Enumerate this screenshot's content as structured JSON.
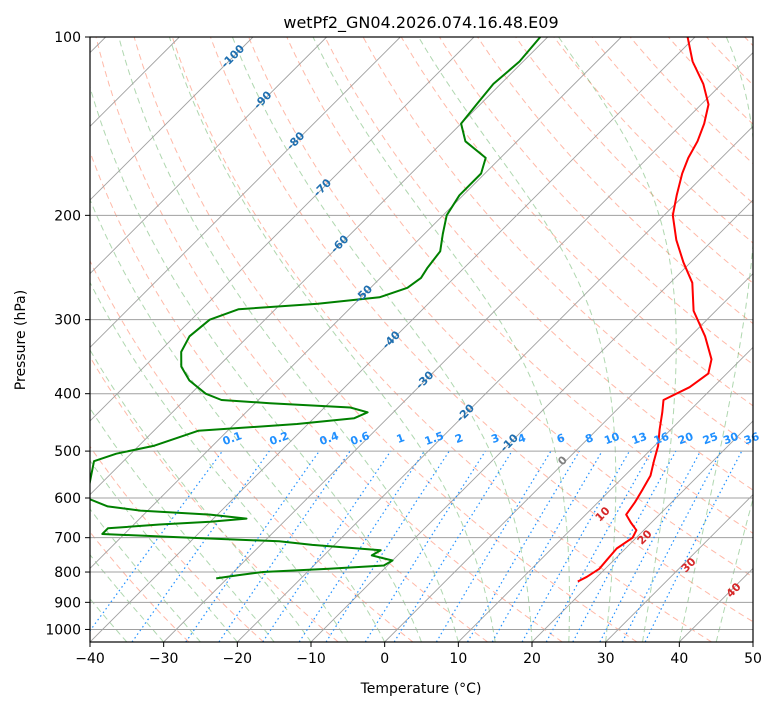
{
  "chart_data": {
    "type": "line",
    "title": "wetPf2_GN04.2026.074.16.48.E09",
    "xlabel": "Temperature (°C)",
    "ylabel": "Pressure (hPa)",
    "xlim": [
      -40,
      50
    ],
    "ylim": [
      1050,
      100
    ],
    "y_scale": "log",
    "skew_deg": 45,
    "x_ticks": [
      -40,
      -30,
      -20,
      -10,
      0,
      10,
      20,
      30,
      40,
      50
    ],
    "y_ticks": [
      100,
      200,
      300,
      400,
      500,
      600,
      700,
      800,
      900,
      1000
    ],
    "grid": true,
    "series": [
      {
        "role": "temperature",
        "color": "#ff0000",
        "points": [
          [
            830,
            18.0
          ],
          [
            815,
            18.6
          ],
          [
            790,
            19.2
          ],
          [
            760,
            19.0
          ],
          [
            730,
            18.8
          ],
          [
            700,
            19.5
          ],
          [
            680,
            19.0
          ],
          [
            660,
            17.2
          ],
          [
            640,
            15.5
          ],
          [
            610,
            15.0
          ],
          [
            580,
            14.3
          ],
          [
            550,
            13.5
          ],
          [
            520,
            12.0
          ],
          [
            490,
            10.5
          ],
          [
            460,
            8.5
          ],
          [
            430,
            6.5
          ],
          [
            410,
            5.0
          ],
          [
            390,
            6.8
          ],
          [
            370,
            7.5
          ],
          [
            350,
            6.0
          ],
          [
            320,
            2.0
          ],
          [
            290,
            -3.0
          ],
          [
            260,
            -7.0
          ],
          [
            240,
            -11.0
          ],
          [
            220,
            -15.0
          ],
          [
            200,
            -18.8
          ],
          [
            185,
            -21.0
          ],
          [
            170,
            -23.2
          ],
          [
            160,
            -24.5
          ],
          [
            150,
            -25.5
          ],
          [
            140,
            -27.0
          ],
          [
            130,
            -29.0
          ],
          [
            120,
            -32.5
          ],
          [
            110,
            -37.0
          ],
          [
            100,
            -41.0
          ]
        ]
      },
      {
        "role": "dewpoint",
        "color": "#008000",
        "points": [
          [
            820,
            -31.5
          ],
          [
            810,
            -29.0
          ],
          [
            800,
            -26.0
          ],
          [
            790,
            -17.5
          ],
          [
            780,
            -10.5
          ],
          [
            765,
            -10.0
          ],
          [
            750,
            -13.5
          ],
          [
            735,
            -13.0
          ],
          [
            720,
            -23.0
          ],
          [
            710,
            -28.0
          ],
          [
            700,
            -40.5
          ],
          [
            690,
            -53.0
          ],
          [
            675,
            -53.0
          ],
          [
            665,
            -46.5
          ],
          [
            658,
            -40.0
          ],
          [
            650,
            -35.5
          ],
          [
            640,
            -41.0
          ],
          [
            630,
            -51.0
          ],
          [
            620,
            -56.0
          ],
          [
            600,
            -60.0
          ],
          [
            520,
            -64.0
          ],
          [
            505,
            -62.0
          ],
          [
            490,
            -58.0
          ],
          [
            462,
            -54.0
          ],
          [
            450,
            -41.5
          ],
          [
            440,
            -34.5
          ],
          [
            430,
            -33.5
          ],
          [
            422,
            -36.5
          ],
          [
            415,
            -48.0
          ],
          [
            410,
            -55.0
          ],
          [
            400,
            -58.0
          ],
          [
            380,
            -62.0
          ],
          [
            360,
            -65.0
          ],
          [
            340,
            -67.0
          ],
          [
            320,
            -68.0
          ],
          [
            300,
            -67.5
          ],
          [
            288,
            -65.0
          ],
          [
            282,
            -55.0
          ],
          [
            275,
            -47.5
          ],
          [
            265,
            -45.0
          ],
          [
            255,
            -44.5
          ],
          [
            245,
            -45.0
          ],
          [
            230,
            -45.5
          ],
          [
            215,
            -47.5
          ],
          [
            200,
            -49.5
          ],
          [
            185,
            -50.5
          ],
          [
            170,
            -50.5
          ],
          [
            160,
            -52.0
          ],
          [
            150,
            -57.0
          ],
          [
            140,
            -60.0
          ],
          [
            130,
            -60.5
          ],
          [
            120,
            -61.0
          ],
          [
            110,
            -60.5
          ],
          [
            100,
            -61.0
          ]
        ]
      }
    ],
    "isotherm_labels": [
      "-100",
      "-90",
      "-80",
      "-70",
      "-60",
      "-50",
      "-40",
      "-30",
      "-20",
      "-10"
    ],
    "mixing_ratio_labels": [
      "0.1",
      "0.2",
      "0.4",
      "0.6",
      "1",
      "1.5",
      "2",
      "3",
      "4",
      "6",
      "8",
      "10",
      "13",
      "16",
      "20",
      "25",
      "30",
      "36"
    ],
    "moist_adiabat_labels": [
      "0",
      "10",
      "20",
      "30",
      "40"
    ],
    "colors": {
      "isotherm_label": "#1f6fb0",
      "mixing_ratio": "#2090ff",
      "dry_adiabat": "#ff8060",
      "moist_adiabat": "#60b060",
      "moist_label_red": "#d62728",
      "moist_label_gray": "#808080",
      "isobar": "#a0a0a0",
      "isotherm": "#a0a0a0",
      "frame": "#000000"
    }
  }
}
